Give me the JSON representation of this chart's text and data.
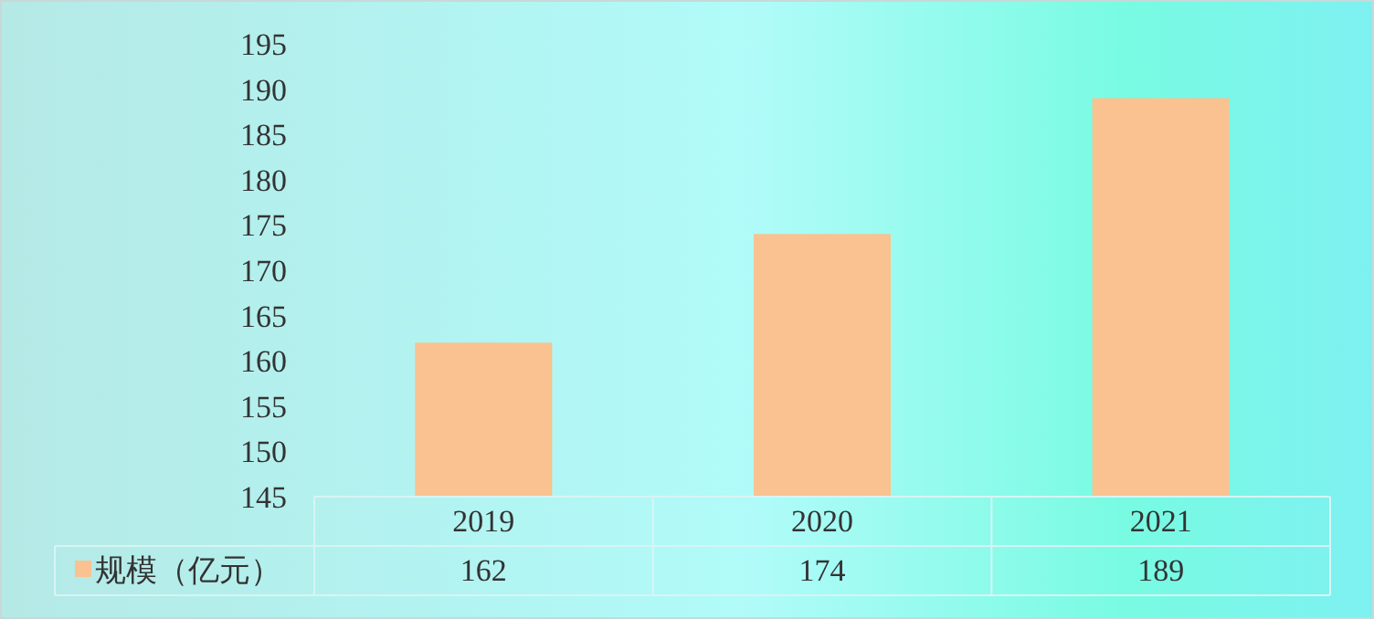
{
  "chart_data": {
    "type": "bar",
    "categories": [
      "2019",
      "2020",
      "2021"
    ],
    "series": [
      {
        "name": "规模（亿元）",
        "color": "#f9c290",
        "values": [
          162,
          174,
          189
        ]
      }
    ],
    "ylim": [
      145,
      195
    ],
    "yticks": [
      145,
      150,
      155,
      160,
      165,
      170,
      175,
      180,
      185,
      190,
      195
    ],
    "data_labels": true,
    "legend": "bottom left"
  }
}
